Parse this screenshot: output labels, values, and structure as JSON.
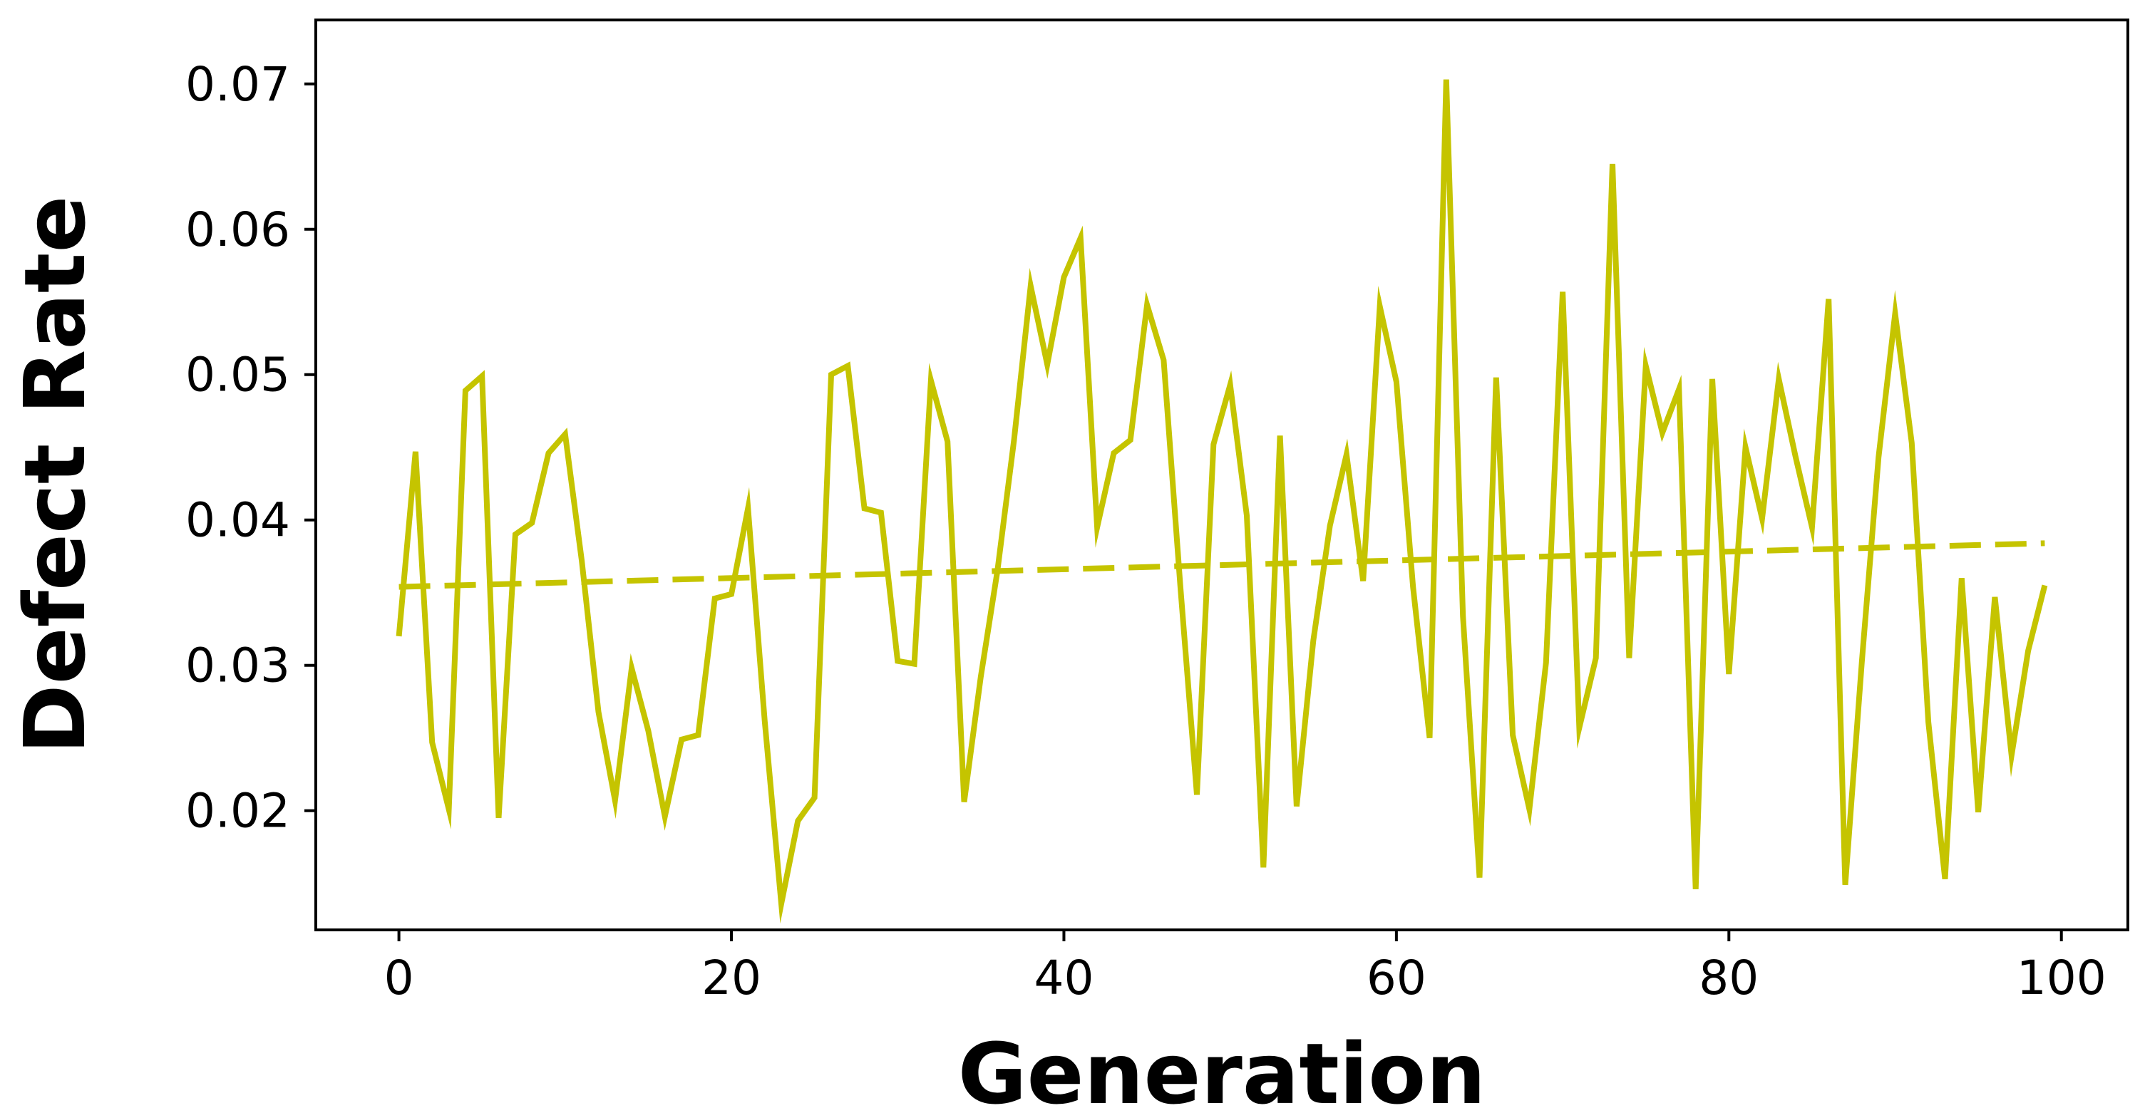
{
  "chart_data": {
    "type": "line",
    "title": "",
    "xlabel": "Generation",
    "ylabel": "Defect Rate",
    "xlim": [
      -5,
      104
    ],
    "ylim": [
      0.0118,
      0.0744
    ],
    "xticks": [
      0,
      20,
      40,
      60,
      80,
      100
    ],
    "xtick_labels": [
      "0",
      "20",
      "40",
      "60",
      "80",
      "100"
    ],
    "yticks": [
      0.02,
      0.03,
      0.04,
      0.05,
      0.06,
      0.07
    ],
    "ytick_labels": [
      "0.02",
      "0.03",
      "0.04",
      "0.05",
      "0.06",
      "0.07"
    ],
    "grid": false,
    "line_color": "#c5c400",
    "series": [
      {
        "style": "solid",
        "x": [
          0,
          1,
          2,
          3,
          4,
          5,
          6,
          7,
          8,
          9,
          10,
          11,
          12,
          13,
          14,
          15,
          16,
          17,
          18,
          19,
          20,
          21,
          22,
          23,
          24,
          25,
          26,
          27,
          28,
          29,
          30,
          31,
          32,
          33,
          34,
          35,
          36,
          37,
          38,
          39,
          40,
          41,
          42,
          43,
          44,
          45,
          46,
          47,
          48,
          49,
          50,
          51,
          52,
          53,
          54,
          55,
          56,
          57,
          58,
          59,
          60,
          61,
          62,
          63,
          64,
          65,
          66,
          67,
          68,
          69,
          70,
          71,
          72,
          73,
          74,
          75,
          76,
          77,
          78,
          79,
          80,
          81,
          82,
          83,
          84,
          85,
          86,
          87,
          88,
          89,
          90,
          91,
          92,
          93,
          94,
          95,
          96,
          97,
          98,
          99
        ],
        "values": [
          0.032,
          0.0447,
          0.0247,
          0.0201,
          0.0489,
          0.0499,
          0.0195,
          0.039,
          0.0398,
          0.0446,
          0.0459,
          0.0372,
          0.0268,
          0.0207,
          0.0298,
          0.0255,
          0.0196,
          0.0249,
          0.0252,
          0.0346,
          0.0349,
          0.0408,
          0.0262,
          0.0136,
          0.0193,
          0.0209,
          0.05,
          0.0506,
          0.0408,
          0.0405,
          0.0303,
          0.0301,
          0.0496,
          0.0454,
          0.0206,
          0.0292,
          0.0365,
          0.0455,
          0.0561,
          0.0507,
          0.0567,
          0.0594,
          0.0395,
          0.0446,
          0.0455,
          0.0548,
          0.051,
          0.0355,
          0.0211,
          0.0452,
          0.0493,
          0.0403,
          0.0161,
          0.0458,
          0.0203,
          0.0317,
          0.0396,
          0.0445,
          0.0358,
          0.0547,
          0.0495,
          0.0354,
          0.025,
          0.0703,
          0.0334,
          0.0154,
          0.0498,
          0.0252,
          0.0201,
          0.0302,
          0.0557,
          0.0257,
          0.0305,
          0.0645,
          0.0305,
          0.0506,
          0.046,
          0.049,
          0.0146,
          0.0497,
          0.0294,
          0.045,
          0.0401,
          0.0497,
          0.0444,
          0.0395,
          0.0552,
          0.0149,
          0.0303,
          0.0443,
          0.0542,
          0.0453,
          0.0261,
          0.0153,
          0.036,
          0.0199,
          0.0347,
          0.0238,
          0.031,
          0.0355
        ]
      },
      {
        "style": "dashed",
        "x": [
          0,
          99
        ],
        "values": [
          0.0354,
          0.0384
        ]
      }
    ]
  }
}
